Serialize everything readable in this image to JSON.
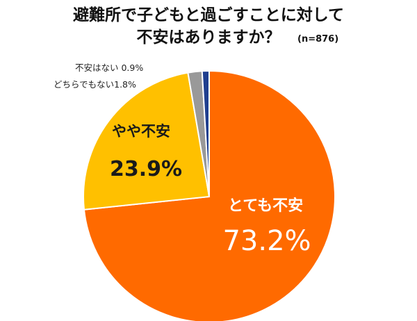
{
  "chart_data": {
    "type": "pie",
    "title_line1": "避難所で子どもと過ごすことに対して",
    "title_line2": "不安はありますか？",
    "sample_note": "(n=876)",
    "slices": [
      {
        "label": "とても不安",
        "value": 73.2,
        "value_text": "73.2%",
        "color": "#FF6A00"
      },
      {
        "label": "やや不安",
        "value": 23.9,
        "value_text": "23.9%",
        "color": "#FFC000"
      },
      {
        "label": "どちらでもない",
        "value": 1.8,
        "value_text": "1.8%",
        "color": "#999999"
      },
      {
        "label": "不安はない",
        "value": 0.9,
        "value_text": "0.9%",
        "color": "#1F3F8F"
      }
    ],
    "legend": "none",
    "start": "12 o'clock, clockwise"
  }
}
